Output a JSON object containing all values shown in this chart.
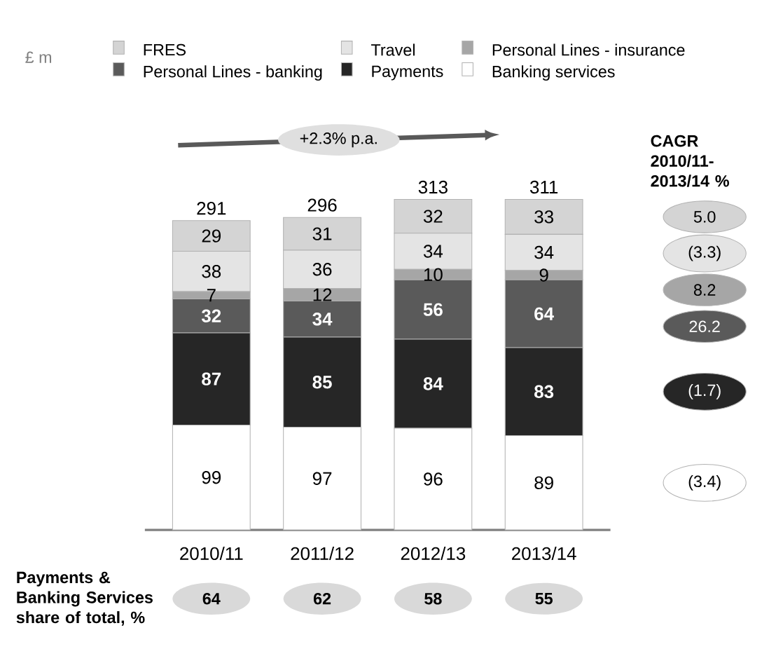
{
  "chart_data": {
    "type": "bar",
    "stacked": true,
    "data_labels": true,
    "legend": "top",
    "categories": [
      "2010/11",
      "2011/12",
      "2012/13",
      "2013/14"
    ],
    "series": [
      {
        "name": "Banking services",
        "color": "#ffffff",
        "values": [
          99,
          97,
          96,
          89
        ]
      },
      {
        "name": "Payments",
        "color": "#262626",
        "values": [
          87,
          85,
          84,
          83
        ]
      },
      {
        "name": "Personal Lines - banking",
        "color": "#5a5a5a",
        "values": [
          32,
          34,
          56,
          64
        ]
      },
      {
        "name": "Personal Lines - insurance",
        "color": "#a6a6a6",
        "values": [
          7,
          12,
          10,
          9
        ]
      },
      {
        "name": "Travel",
        "color": "#e4e4e4",
        "values": [
          38,
          36,
          34,
          34
        ]
      },
      {
        "name": "FRES",
        "color": "#d4d4d4",
        "values": [
          29,
          31,
          32,
          33
        ]
      }
    ],
    "totals": [
      "291",
      "296",
      "313",
      "311"
    ],
    "annotations": [
      "£ m",
      "+2.3% p.a.",
      "CAGR 2010/11-2013/14 %",
      "5.0",
      "(3.3)",
      "8.2",
      "26.2",
      "(1.7)",
      "(3.4)",
      "Payments & Banking Services share of total, %",
      "64",
      "62",
      "58",
      "55"
    ]
  }
}
